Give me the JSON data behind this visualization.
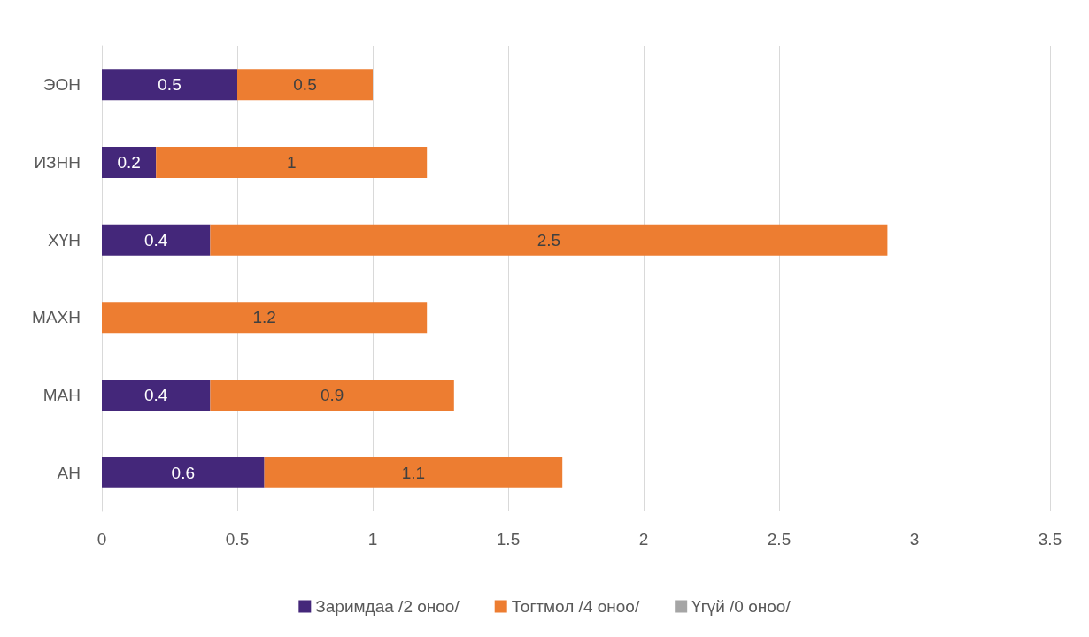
{
  "chart_data": {
    "type": "bar",
    "orientation": "horizontal",
    "stacked": true,
    "categories": [
      "ЭОН",
      "ИЗНН",
      "ХҮН",
      "МАХН",
      "МАН",
      "АН"
    ],
    "series": [
      {
        "name": "Заримдаа /2 оноо/",
        "color": "#44277a",
        "values": [
          0.5,
          0.2,
          0.4,
          null,
          0.4,
          0.6
        ]
      },
      {
        "name": "Тогтмол /4 оноо/",
        "color": "#ed7d31",
        "values": [
          0.5,
          1,
          2.5,
          1.2,
          0.9,
          1.1
        ]
      },
      {
        "name": "Үгүй /0 оноо/",
        "color": "#a5a5a5",
        "values": [
          null,
          null,
          null,
          null,
          null,
          null
        ]
      }
    ],
    "xlim": [
      0,
      3.5
    ],
    "xticks": [
      0,
      0.5,
      1,
      1.5,
      2,
      2.5,
      3,
      3.5
    ],
    "grid": "x",
    "legend": "bottom",
    "data_labels": true
  }
}
